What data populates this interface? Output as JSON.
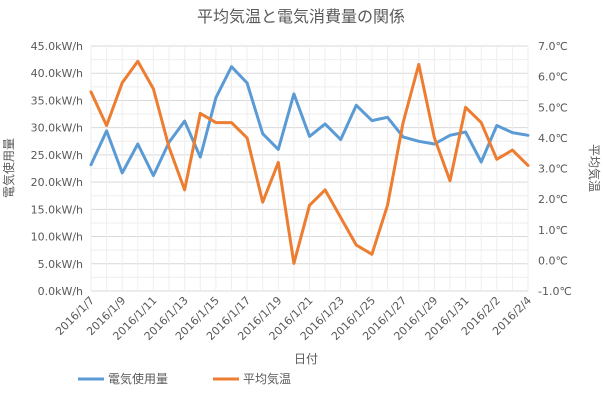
{
  "chart_data": {
    "type": "line",
    "title": "平均気温と電気消費量の関係",
    "xlabel": "日付",
    "ylabel_left": "電気使用量",
    "ylabel_right": "平均気温",
    "ylim_left": [
      0,
      45000
    ],
    "ylim_right": [
      -1,
      7
    ],
    "yticks_left": [
      "0.0kW/h",
      "5.0kW/h",
      "10.0kW/h",
      "15.0kW/h",
      "20.0kW/h",
      "25.0kW/h",
      "30.0kW/h",
      "35.0kW/h",
      "40.0kW/h",
      "45.0kW/h"
    ],
    "yticks_right": [
      "-1.0℃",
      "0.0℃",
      "1.0℃",
      "2.0℃",
      "3.0℃",
      "4.0℃",
      "5.0℃",
      "6.0℃",
      "7.0℃"
    ],
    "x": [
      "2016/1/7",
      "2016/1/8",
      "2016/1/9",
      "2016/1/10",
      "2016/1/11",
      "2016/1/12",
      "2016/1/13",
      "2016/1/14",
      "2016/1/15",
      "2016/1/16",
      "2016/1/17",
      "2016/1/18",
      "2016/1/19",
      "2016/1/20",
      "2016/1/21",
      "2016/1/22",
      "2016/1/23",
      "2016/1/24",
      "2016/1/25",
      "2016/1/26",
      "2016/1/27",
      "2016/1/28",
      "2016/1/29",
      "2016/1/30",
      "2016/1/31",
      "2016/2/1",
      "2016/2/2",
      "2016/2/3",
      "2016/2/4"
    ],
    "x_tick_labels": [
      "2016/1/7",
      "2016/1/9",
      "2016/1/11",
      "2016/1/13",
      "2016/1/15",
      "2016/1/17",
      "2016/1/19",
      "2016/1/21",
      "2016/1/23",
      "2016/1/25",
      "2016/1/27",
      "2016/1/29",
      "2016/1/31",
      "2016/2/2",
      "2016/2/4"
    ],
    "series": [
      {
        "name": "電気使用量",
        "axis": "left",
        "color": "#5b9bd5",
        "values": [
          23200,
          29400,
          21700,
          27000,
          21200,
          27300,
          31200,
          24600,
          35500,
          41200,
          38200,
          28900,
          26000,
          36200,
          28400,
          30700,
          27800,
          34100,
          31300,
          31900,
          28300,
          27500,
          27000,
          28600,
          29200,
          23700,
          30400,
          29100,
          28600
        ]
      },
      {
        "name": "平均気温",
        "axis": "right",
        "color": "#ed7d31",
        "values": [
          5.5,
          4.4,
          5.8,
          6.5,
          5.6,
          3.7,
          2.3,
          4.8,
          4.5,
          4.5,
          4.0,
          1.9,
          3.2,
          -0.1,
          1.8,
          2.3,
          1.4,
          0.5,
          0.2,
          1.8,
          4.5,
          6.4,
          4.0,
          2.6,
          5.0,
          4.5,
          3.3,
          3.6,
          3.1
        ]
      }
    ],
    "grid": true,
    "legend_position": "bottom-left"
  }
}
